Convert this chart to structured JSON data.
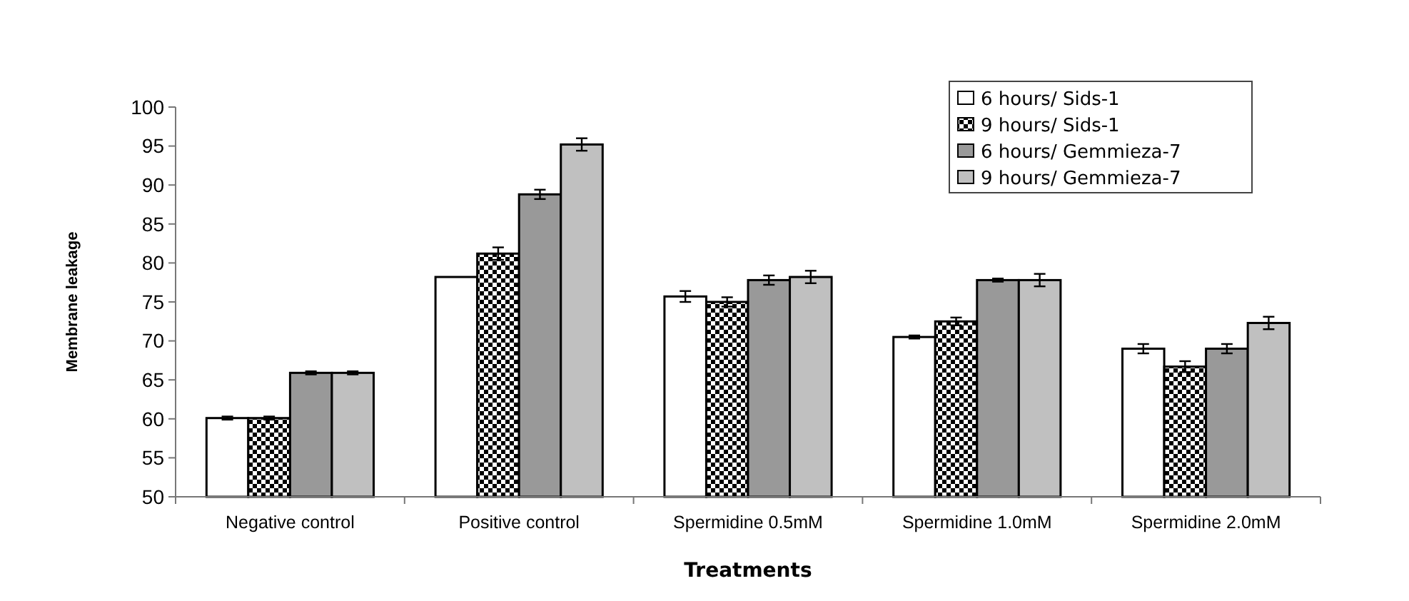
{
  "chart_data": {
    "type": "bar",
    "xlabel": "Treatments",
    "ylabel": "Membrane leakage",
    "categories": [
      "Negative control",
      "Positive control",
      "Spermidine 0.5mM",
      "Spermidine 1.0mM",
      "Spermidine 2.0mM"
    ],
    "series": [
      {
        "name": "6 hours/ Sids-1",
        "color": "#ffffff",
        "values": [
          60.1,
          78.2,
          75.7,
          70.5,
          69.0
        ],
        "errors": [
          0.2,
          null,
          0.7,
          0.2,
          0.6
        ]
      },
      {
        "name": "9 hours/ Sids-1",
        "color": "#000000",
        "values": [
          60.1,
          81.2,
          75.0,
          72.5,
          66.7
        ],
        "errors": [
          0.2,
          0.8,
          0.6,
          0.5,
          0.7
        ]
      },
      {
        "name": "6 hours/ Gemmieza-7",
        "color": "#999999",
        "values": [
          65.9,
          88.8,
          77.8,
          77.8,
          69.0
        ],
        "errors": [
          0.2,
          0.6,
          0.6,
          0.2,
          0.6
        ]
      },
      {
        "name": "9 hours/ Gemmieza-7",
        "color": "#c0c0c0",
        "values": [
          65.9,
          95.2,
          78.2,
          77.8,
          72.3
        ],
        "errors": [
          0.2,
          0.8,
          0.8,
          0.8,
          0.8
        ]
      }
    ],
    "ylim": [
      50,
      100
    ],
    "yticks": [
      50,
      55,
      60,
      65,
      70,
      75,
      80,
      85,
      90,
      95,
      100
    ],
    "grid": false,
    "legend": "top right"
  }
}
